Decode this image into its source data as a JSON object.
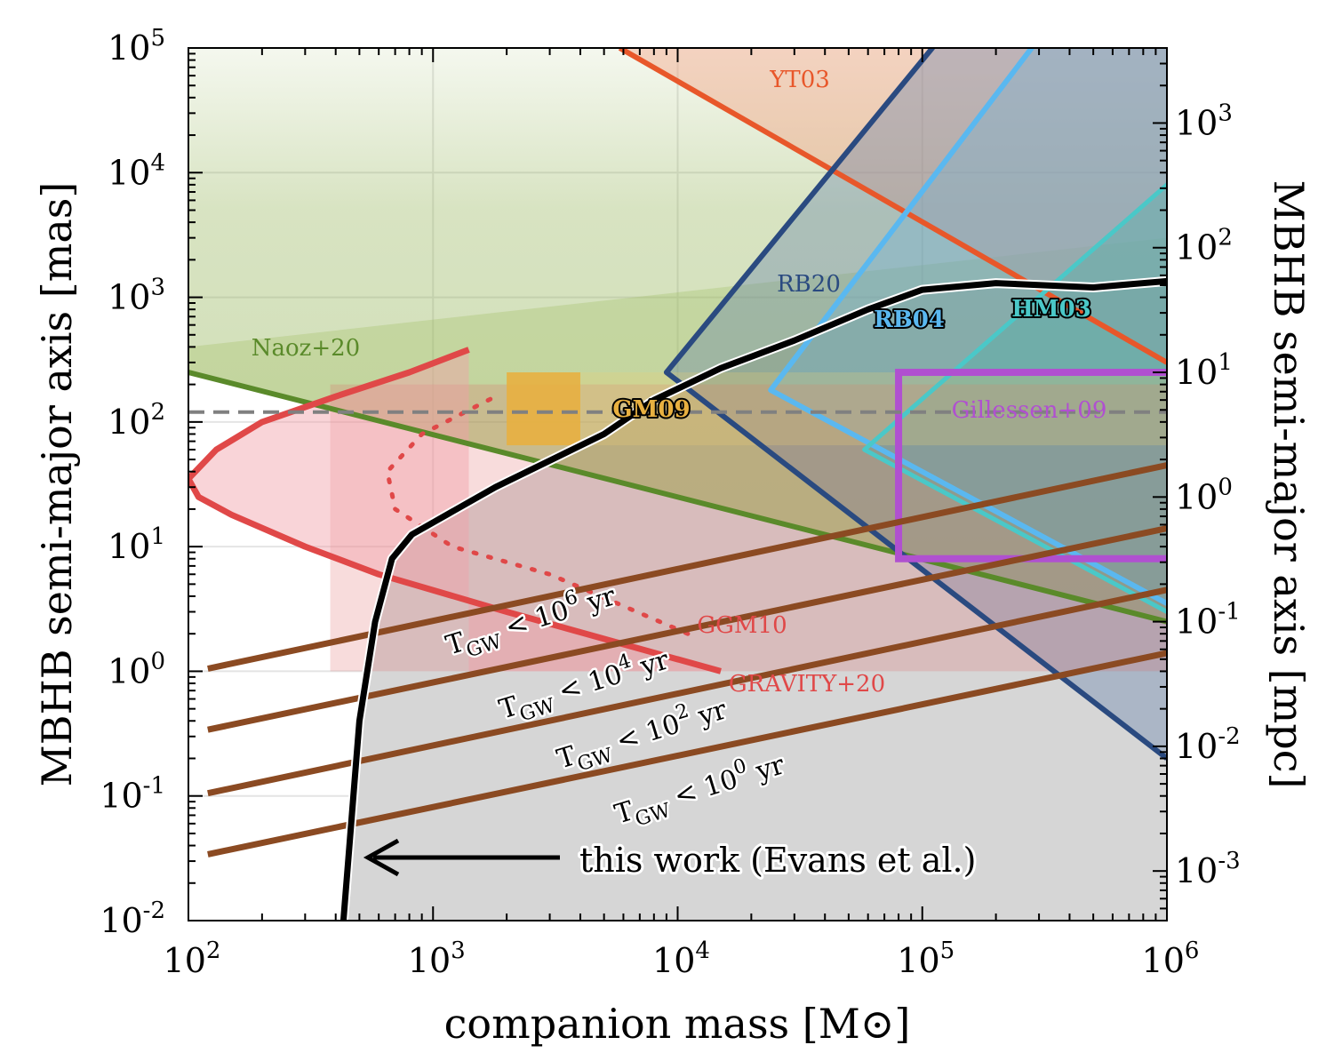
{
  "chart_data": {
    "type": "line",
    "xlabel": "companion mass [M⊙]",
    "ylabel": "MBHB semi-major axis [mas]",
    "y2label": "MBHB semi-major axis [mpc]",
    "xscale": "log",
    "yscale": "log",
    "y2scale": "log",
    "xlim": [
      100,
      1000000
    ],
    "ylim": [
      0.01,
      100000
    ],
    "y2lim": [
      0.0004,
      4000
    ],
    "grid": true,
    "legend": "none",
    "x_ticks": [
      {
        "value": 100,
        "base": "10",
        "exp": "2"
      },
      {
        "value": 1000,
        "base": "10",
        "exp": "3"
      },
      {
        "value": 10000,
        "base": "10",
        "exp": "4"
      },
      {
        "value": 100000,
        "base": "10",
        "exp": "5"
      },
      {
        "value": 1000000,
        "base": "10",
        "exp": "6"
      }
    ],
    "y_ticks": [
      {
        "value": 0.01,
        "base": "10",
        "exp": "-2"
      },
      {
        "value": 0.1,
        "base": "10",
        "exp": "-1"
      },
      {
        "value": 1,
        "base": "10",
        "exp": "0"
      },
      {
        "value": 10,
        "base": "10",
        "exp": "1"
      },
      {
        "value": 100,
        "base": "10",
        "exp": "2"
      },
      {
        "value": 1000,
        "base": "10",
        "exp": "3"
      },
      {
        "value": 10000,
        "base": "10",
        "exp": "4"
      },
      {
        "value": 100000,
        "base": "10",
        "exp": "5"
      }
    ],
    "y2_ticks": [
      {
        "value": 0.001,
        "base": "10",
        "exp": "-3"
      },
      {
        "value": 0.01,
        "base": "10",
        "exp": "-2"
      },
      {
        "value": 0.1,
        "base": "10",
        "exp": "-1"
      },
      {
        "value": 1,
        "base": "10",
        "exp": "0"
      },
      {
        "value": 10,
        "base": "10",
        "exp": "1"
      },
      {
        "value": 100,
        "base": "10",
        "exp": "2"
      },
      {
        "value": 1000,
        "base": "10",
        "exp": "3"
      }
    ],
    "reference_line": {
      "y": 120,
      "style": "dashed",
      "color": "#808080"
    },
    "regions": [
      {
        "name": "YT03",
        "color": "#e8572a",
        "boundary": [
          [
            5800,
            100000
          ],
          [
            1000000,
            300
          ]
        ],
        "fill": "upper-right"
      },
      {
        "name": "Naoz+20",
        "color": "#5a8a2a",
        "boundary": [
          [
            100,
            250
          ],
          [
            1000000,
            2.5
          ]
        ],
        "fill": "upper"
      },
      {
        "name": "RB20",
        "color": "#2a4a80",
        "boundary": [
          [
            9000,
            250
          ],
          [
            110000,
            100000
          ],
          [
            9000,
            250
          ],
          [
            1000000,
            0.2
          ]
        ]
      },
      {
        "name": "RB04",
        "color": "#5ab8f0",
        "boundary": [
          [
            24000,
            180
          ],
          [
            280000,
            100000
          ],
          [
            24000,
            180
          ],
          [
            1000000,
            3.5
          ]
        ]
      },
      {
        "name": "HM03",
        "color": "#4ac8c8",
        "boundary": [
          [
            58000,
            60
          ],
          [
            1000000,
            8000
          ],
          [
            58000,
            60
          ],
          [
            1000000,
            3
          ]
        ]
      },
      {
        "name": "GGM10",
        "color": "#e04848",
        "boundary": [
          [
            380,
            1.5
          ],
          [
            100,
            30
          ],
          [
            100,
            35
          ],
          [
            380,
            120
          ],
          [
            1250,
            350
          ],
          [
            2000,
            350
          ]
        ]
      },
      {
        "name": "GRAVITY+20",
        "color": "#e04848",
        "shade": [
          1,
          200
        ]
      },
      {
        "name": "GM09",
        "color": "#e8b040",
        "rect": {
          "x": [
            2000,
            4000
          ],
          "y": [
            65,
            250
          ]
        }
      },
      {
        "name": "Gillessen+09",
        "color": "#b050d0",
        "rect": {
          "x": [
            80000,
            1000000
          ],
          "y": [
            8,
            250
          ]
        }
      }
    ],
    "series": [
      {
        "name": "this work (Evans et al.)",
        "color": "#000000",
        "points": [
          [
            430,
            0.01
          ],
          [
            500,
            0.4
          ],
          [
            580,
            2.5
          ],
          [
            680,
            8
          ],
          [
            820,
            12.5
          ],
          [
            1800,
            30
          ],
          [
            5000,
            80
          ],
          [
            8000,
            150
          ],
          [
            15000,
            270
          ],
          [
            30000,
            450
          ],
          [
            60000,
            800
          ],
          [
            100000,
            1150
          ],
          [
            200000,
            1300
          ],
          [
            500000,
            1200
          ],
          [
            1000000,
            1350
          ]
        ]
      },
      {
        "name": "GGM10",
        "color": "#e04848",
        "style": "solid",
        "points": [
          [
            15000,
            1
          ],
          [
            2000,
            3
          ],
          [
            600,
            6
          ],
          [
            300,
            10
          ],
          [
            150,
            18
          ],
          [
            110,
            25
          ],
          [
            100,
            35
          ],
          [
            130,
            60
          ],
          [
            200,
            100
          ],
          [
            400,
            160
          ],
          [
            800,
            250
          ],
          [
            1400,
            380
          ]
        ]
      },
      {
        "name": "GGM10 (dotted)",
        "color": "#e04848",
        "style": "dotted",
        "points": [
          [
            11000,
            2
          ],
          [
            3000,
            6
          ],
          [
            1200,
            10
          ],
          [
            700,
            20
          ],
          [
            650,
            40
          ],
          [
            900,
            80
          ],
          [
            1800,
            160
          ]
        ]
      },
      {
        "name": "T_GW < 10^6 yr",
        "color": "#8b4a22",
        "points": [
          [
            120,
            1.05
          ],
          [
            1000000,
            45
          ]
        ]
      },
      {
        "name": "T_GW < 10^4 yr",
        "color": "#8b4a22",
        "points": [
          [
            120,
            0.34
          ],
          [
            1000000,
            14
          ]
        ]
      },
      {
        "name": "T_GW < 10^2 yr",
        "color": "#8b4a22",
        "points": [
          [
            120,
            0.105
          ],
          [
            1000000,
            4.5
          ]
        ]
      },
      {
        "name": "T_GW < 10^0 yr",
        "color": "#8b4a22",
        "points": [
          [
            120,
            0.034
          ],
          [
            1000000,
            1.4
          ]
        ]
      }
    ],
    "annotations": [
      {
        "text": "YT03",
        "color": "#e8572a"
      },
      {
        "text": "Naoz+20",
        "color": "#5a8a2a"
      },
      {
        "text": "RB20",
        "color": "#2a4a80"
      },
      {
        "text": "RB04",
        "color": "#5ab8f0"
      },
      {
        "text": "HM03",
        "color": "#4ac8c8"
      },
      {
        "text": "GM09",
        "color": "#e8b040"
      },
      {
        "text": "Gillessen+09",
        "color": "#b050d0"
      },
      {
        "text": "GGM10",
        "color": "#e04848"
      },
      {
        "text": "GRAVITY+20",
        "color": "#e04848"
      },
      {
        "text": "this work (Evans et al.)",
        "color": "#000000"
      }
    ],
    "tgw_labels": [
      {
        "prefix": "T",
        "sub": "GW",
        "mid": " < 10",
        "exp": "6",
        "suffix": " yr"
      },
      {
        "prefix": "T",
        "sub": "GW",
        "mid": " < 10",
        "exp": "4",
        "suffix": " yr"
      },
      {
        "prefix": "T",
        "sub": "GW",
        "mid": " < 10",
        "exp": "2",
        "suffix": " yr"
      },
      {
        "prefix": "T",
        "sub": "GW",
        "mid": " < 10",
        "exp": "0",
        "suffix": " yr"
      }
    ]
  }
}
